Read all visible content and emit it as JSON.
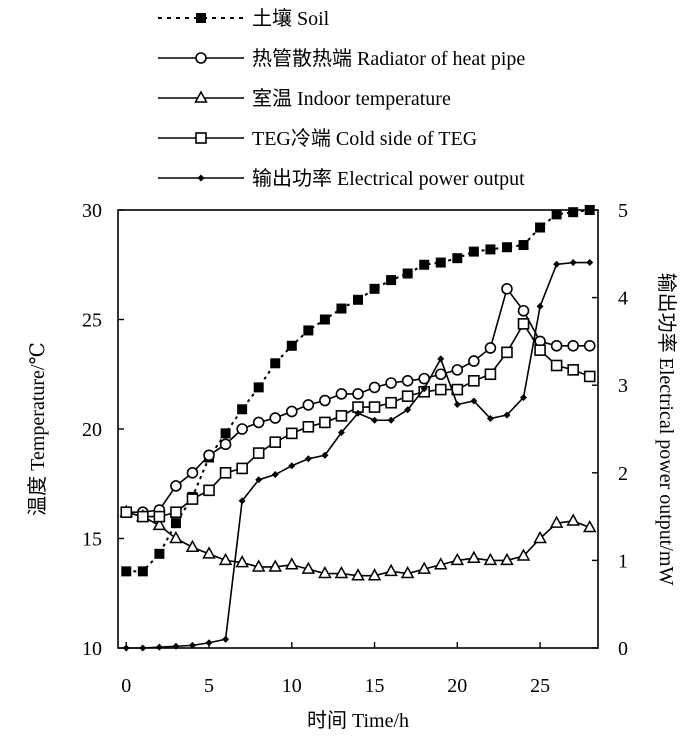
{
  "chart_data": {
    "type": "line",
    "title": "",
    "xlabel": "时间 Time/h",
    "ylabel_left": "温度 Temperature/℃",
    "ylabel_right": "输出功率 Electrical power output/mW",
    "xlim": [
      -0.5,
      28.5
    ],
    "ylim_left": [
      10,
      30
    ],
    "ylim_right": [
      0,
      5
    ],
    "x_ticks": [
      0,
      5,
      10,
      15,
      20,
      25
    ],
    "y_ticks_left": [
      10,
      15,
      20,
      25,
      30
    ],
    "y_ticks_right": [
      0,
      1,
      2,
      3,
      4,
      5
    ],
    "legend_position": "top",
    "series": [
      {
        "name": "土壤 Soil",
        "axis": "left",
        "line": "dotted",
        "marker": "filled-square",
        "x": [
          0,
          1,
          2,
          3,
          4,
          5,
          6,
          7,
          8,
          9,
          10,
          11,
          12,
          13,
          14,
          15,
          16,
          17,
          18,
          19,
          20,
          21,
          22,
          23,
          24,
          25,
          26,
          27,
          28
        ],
        "values": [
          13.5,
          13.5,
          14.3,
          15.7,
          16.9,
          18.7,
          19.8,
          20.9,
          21.9,
          23.0,
          23.8,
          24.5,
          25.0,
          25.5,
          25.9,
          26.4,
          26.8,
          27.1,
          27.5,
          27.6,
          27.8,
          28.1,
          28.2,
          28.3,
          28.4,
          29.2,
          29.8,
          29.9,
          30.0
        ]
      },
      {
        "name": "热管散热端 Radiator of heat pipe",
        "axis": "left",
        "line": "solid",
        "marker": "open-circle",
        "x": [
          0,
          1,
          2,
          3,
          4,
          5,
          6,
          7,
          8,
          9,
          10,
          11,
          12,
          13,
          14,
          15,
          16,
          17,
          18,
          19,
          20,
          21,
          22,
          23,
          24,
          25,
          26,
          27,
          28
        ],
        "values": [
          16.2,
          16.2,
          16.3,
          17.4,
          18.0,
          18.8,
          19.3,
          20.0,
          20.3,
          20.5,
          20.8,
          21.1,
          21.3,
          21.6,
          21.6,
          21.9,
          22.1,
          22.2,
          22.3,
          22.5,
          22.7,
          23.1,
          23.7,
          26.4,
          25.4,
          24.0,
          23.8,
          23.8,
          23.8
        ]
      },
      {
        "name": "室温 Indoor temperature",
        "axis": "left",
        "line": "solid",
        "marker": "open-triangle",
        "x": [
          0,
          1,
          2,
          3,
          4,
          5,
          6,
          7,
          8,
          9,
          10,
          11,
          12,
          13,
          14,
          15,
          16,
          17,
          18,
          19,
          20,
          21,
          22,
          23,
          24,
          25,
          26,
          27,
          28
        ],
        "values": [
          16.2,
          16.0,
          15.6,
          15.0,
          14.6,
          14.3,
          14.0,
          13.9,
          13.7,
          13.7,
          13.8,
          13.6,
          13.4,
          13.4,
          13.3,
          13.3,
          13.5,
          13.4,
          13.6,
          13.8,
          14.0,
          14.1,
          14.0,
          14.0,
          14.2,
          15.0,
          15.7,
          15.8,
          15.5
        ]
      },
      {
        "name": "TEG冷端 Cold side of TEG",
        "axis": "left",
        "line": "solid",
        "marker": "open-square",
        "x": [
          0,
          1,
          2,
          3,
          4,
          5,
          6,
          7,
          8,
          9,
          10,
          11,
          12,
          13,
          14,
          15,
          16,
          17,
          18,
          19,
          20,
          21,
          22,
          23,
          24,
          25,
          26,
          27,
          28
        ],
        "values": [
          16.2,
          16.0,
          16.0,
          16.2,
          16.8,
          17.2,
          18.0,
          18.2,
          18.9,
          19.4,
          19.8,
          20.1,
          20.3,
          20.6,
          21.0,
          21.0,
          21.2,
          21.5,
          21.7,
          21.8,
          21.8,
          22.2,
          22.5,
          23.5,
          24.8,
          23.6,
          22.9,
          22.7,
          22.4
        ]
      },
      {
        "name": "输出功率 Electrical power output",
        "axis": "right",
        "line": "solid",
        "marker": "filled-diamond",
        "x": [
          0,
          1,
          2,
          3,
          4,
          5,
          6,
          7,
          8,
          9,
          10,
          11,
          12,
          13,
          14,
          15,
          16,
          17,
          18,
          19,
          20,
          21,
          22,
          23,
          24,
          25,
          26,
          27,
          28
        ],
        "values": [
          0.0,
          0.0,
          0.01,
          0.02,
          0.03,
          0.06,
          0.1,
          1.68,
          1.92,
          1.98,
          2.08,
          2.16,
          2.2,
          2.46,
          2.68,
          2.6,
          2.6,
          2.72,
          2.96,
          3.3,
          2.78,
          2.82,
          2.62,
          2.66,
          2.86,
          3.9,
          4.38,
          4.4,
          4.4
        ]
      }
    ]
  }
}
